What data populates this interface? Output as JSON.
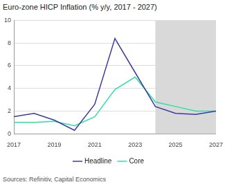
{
  "chart_data": {
    "type": "line",
    "title": "Euro-zone HICP Inflation (% y/y, 2017 - 2027)",
    "source": "Sources: Refinitiv, Capital Economics",
    "x": [
      2017,
      2018,
      2019,
      2020,
      2021,
      2022,
      2023,
      2024,
      2025,
      2026,
      2027
    ],
    "series": [
      {
        "name": "Headline",
        "color": "#3d3a9c",
        "values": [
          1.5,
          1.8,
          1.2,
          0.3,
          2.6,
          8.4,
          5.4,
          2.4,
          1.8,
          1.7,
          2.0
        ]
      },
      {
        "name": "Core",
        "color": "#2fe0a6",
        "values": [
          1.0,
          1.0,
          1.1,
          0.7,
          1.5,
          3.9,
          5.0,
          2.8,
          2.4,
          2.0,
          2.0
        ]
      }
    ],
    "xlim": [
      2017,
      2027
    ],
    "xticks": [
      2017,
      2019,
      2021,
      2023,
      2025,
      2027
    ],
    "ylim": [
      0,
      10
    ],
    "yticks": [
      0,
      2,
      4,
      6,
      8,
      10
    ],
    "shaded_region": {
      "from": 2024,
      "to": 2027,
      "color": "#d9d9d9"
    },
    "grid": true,
    "legend": "bottom"
  }
}
